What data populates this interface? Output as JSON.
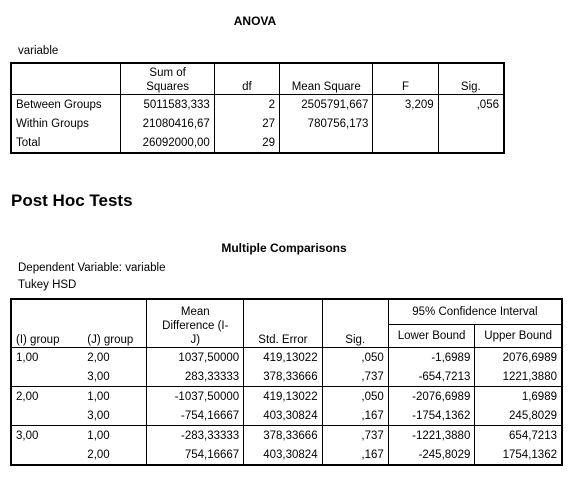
{
  "anova": {
    "title": "ANOVA",
    "variable_label": "variable",
    "headers": [
      "",
      "Sum of\nSquares",
      "df",
      "Mean Square",
      "F",
      "Sig."
    ],
    "rows": [
      {
        "label": "Between Groups",
        "ss": "5011583,333",
        "df": "2",
        "ms": "2505791,667",
        "f": "3,209",
        "sig": ",056"
      },
      {
        "label": "Within Groups",
        "ss": "21080416,67",
        "df": "27",
        "ms": "780756,173",
        "f": "",
        "sig": ""
      },
      {
        "label": "Total",
        "ss": "26092000,00",
        "df": "29",
        "ms": "",
        "f": "",
        "sig": ""
      }
    ]
  },
  "posthoc": {
    "heading": "Post Hoc Tests",
    "title": "Multiple Comparisons",
    "dep_var": "Dependent Variable: variable",
    "method": "Tukey HSD",
    "headers": {
      "i_group": "(I) group",
      "j_group": "(J) group",
      "mean_diff": "Mean\nDifference (I-\nJ)",
      "std_error": "Std. Error",
      "sig": "Sig.",
      "ci": "95% Confidence Interval",
      "lower": "Lower Bound",
      "upper": "Upper Bound"
    },
    "rows": [
      {
        "i": "1,00",
        "j": "2,00",
        "md": "1037,50000",
        "se": "419,13022",
        "sig": ",050",
        "lb": "-1,6989",
        "ub": "2076,6989"
      },
      {
        "i": "",
        "j": "3,00",
        "md": "283,33333",
        "se": "378,33666",
        "sig": ",737",
        "lb": "-654,7213",
        "ub": "1221,3880"
      },
      {
        "i": "2,00",
        "j": "1,00",
        "md": "-1037,50000",
        "se": "419,13022",
        "sig": ",050",
        "lb": "-2076,6989",
        "ub": "1,6989"
      },
      {
        "i": "",
        "j": "3,00",
        "md": "-754,16667",
        "se": "403,30824",
        "sig": ",167",
        "lb": "-1754,1362",
        "ub": "245,8029"
      },
      {
        "i": "3,00",
        "j": "1,00",
        "md": "-283,33333",
        "se": "378,33666",
        "sig": ",737",
        "lb": "-1221,3880",
        "ub": "654,7213"
      },
      {
        "i": "",
        "j": "2,00",
        "md": "754,16667",
        "se": "403,30824",
        "sig": ",167",
        "lb": "-245,8029",
        "ub": "1754,1362"
      }
    ]
  }
}
